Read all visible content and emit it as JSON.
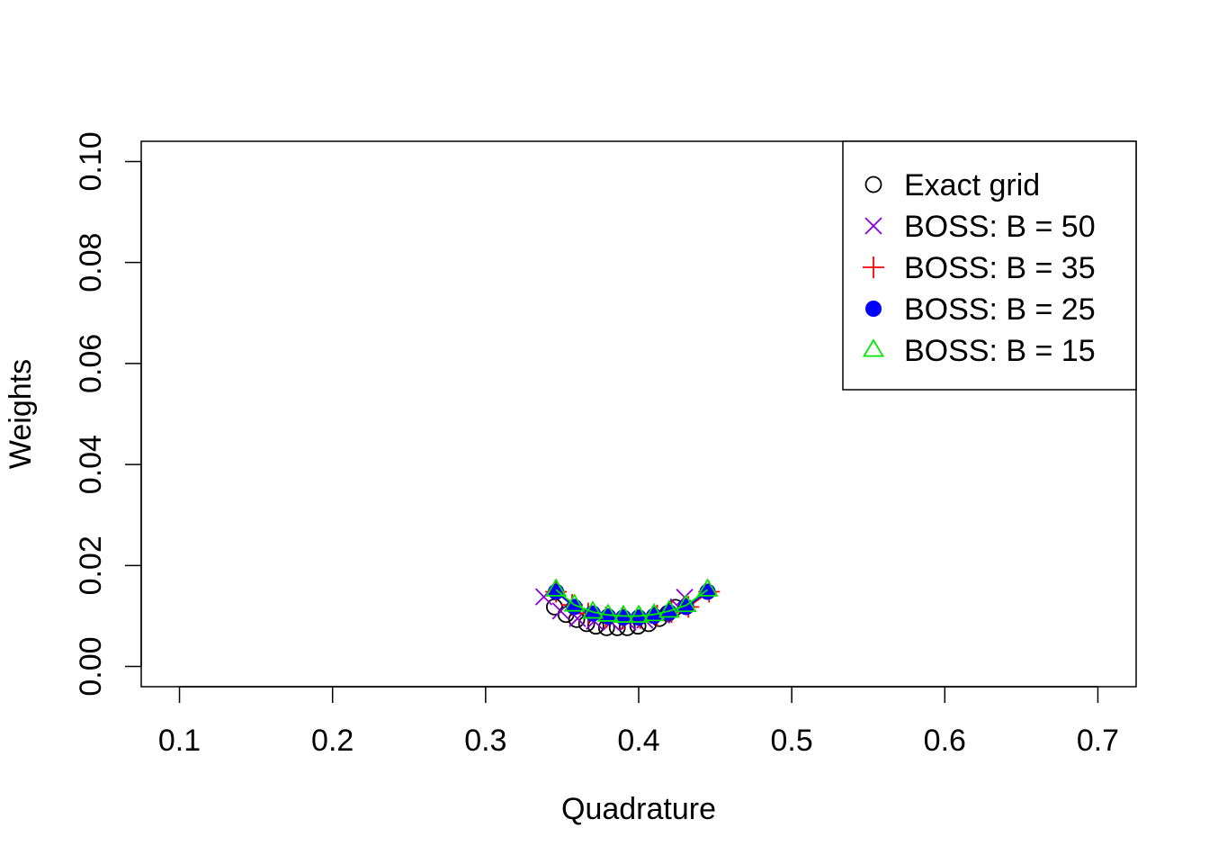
{
  "chart_data": {
    "type": "scatter",
    "title": "",
    "xlabel": "Quadrature",
    "ylabel": "Weights",
    "xlim": [
      0.075,
      0.725
    ],
    "ylim": [
      -0.004,
      0.104
    ],
    "xticks": [
      0.1,
      0.2,
      0.3,
      0.4,
      0.5,
      0.6,
      0.7
    ],
    "xtick_labels": [
      "0.1",
      "0.2",
      "0.3",
      "0.4",
      "0.5",
      "0.6",
      "0.7"
    ],
    "yticks": [
      0.0,
      0.02,
      0.04,
      0.06,
      0.08,
      0.1
    ],
    "ytick_labels": [
      "0.00",
      "0.02",
      "0.04",
      "0.06",
      "0.08",
      "0.10"
    ],
    "grid": false,
    "legend_position": "top-right",
    "series": [
      {
        "name": "Exact grid",
        "color": "#000000",
        "marker": "open-circle",
        "line": false,
        "x": [
          0.345,
          0.3525,
          0.3595,
          0.366,
          0.372,
          0.379,
          0.386,
          0.3925,
          0.3995,
          0.4065,
          0.4135,
          0.419,
          0.424
        ],
        "y": [
          0.0118,
          0.0103,
          0.0093,
          0.0085,
          0.008,
          0.0077,
          0.0077,
          0.0077,
          0.008,
          0.0085,
          0.0095,
          0.0105,
          0.0117
        ]
      },
      {
        "name": "BOSS: B = 50",
        "color": "#8A00D4",
        "marker": "cross-x",
        "line": false,
        "x": [
          0.338,
          0.349,
          0.36,
          0.371,
          0.382,
          0.393,
          0.404,
          0.415,
          0.426,
          0.43
        ],
        "y": [
          0.0138,
          0.011,
          0.0095,
          0.009,
          0.0088,
          0.0088,
          0.0092,
          0.0102,
          0.0118,
          0.0137
        ]
      },
      {
        "name": "BOSS: B = 35",
        "color": "#FF0000",
        "marker": "plus",
        "line": true,
        "x": [
          0.346,
          0.3565,
          0.367,
          0.3785,
          0.3895,
          0.401,
          0.412,
          0.4215,
          0.4325,
          0.446
        ],
        "y": [
          0.0148,
          0.0122,
          0.0105,
          0.0097,
          0.0095,
          0.0096,
          0.0101,
          0.0108,
          0.0118,
          0.0148
        ]
      },
      {
        "name": "BOSS: B = 25",
        "color": "#0000FF",
        "marker": "filled-circle",
        "line": true,
        "x": [
          0.346,
          0.358,
          0.37,
          0.38,
          0.39,
          0.4,
          0.41,
          0.42,
          0.431,
          0.445
        ],
        "y": [
          0.0148,
          0.0118,
          0.0105,
          0.0099,
          0.0097,
          0.0097,
          0.01,
          0.0107,
          0.0118,
          0.0148
        ]
      },
      {
        "name": "BOSS: B = 15",
        "color": "#00E800",
        "marker": "open-triangle",
        "line": true,
        "x": [
          0.346,
          0.358,
          0.37,
          0.38,
          0.39,
          0.4,
          0.41,
          0.42,
          0.431,
          0.445
        ],
        "y": [
          0.0152,
          0.0122,
          0.0108,
          0.0102,
          0.01,
          0.01,
          0.0103,
          0.011,
          0.0121,
          0.0152
        ]
      }
    ]
  }
}
